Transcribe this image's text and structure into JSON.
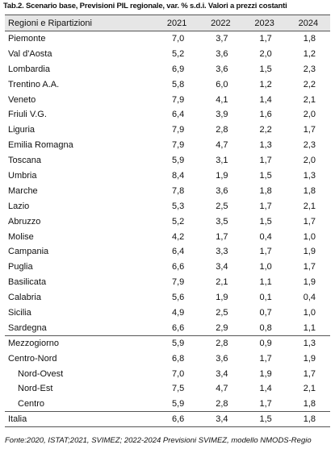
{
  "title": "Tab.2. Scenario base, Previsioni PIL regionale, var. % s.d.i. Valori a prezzi costanti",
  "table": {
    "header": [
      "Regioni e Ripartizioni",
      "2021",
      "2022",
      "2023",
      "2024"
    ],
    "rows": [
      [
        "Piemonte",
        "7,0",
        "3,7",
        "1,7",
        "1,8"
      ],
      [
        "Val d'Aosta",
        "5,2",
        "3,6",
        "2,0",
        "1,2"
      ],
      [
        "Lombardia",
        "6,9",
        "3,6",
        "1,5",
        "2,3"
      ],
      [
        "Trentino A.A.",
        "5,8",
        "6,0",
        "1,2",
        "2,2"
      ],
      [
        "Veneto",
        "7,9",
        "4,1",
        "1,4",
        "2,1"
      ],
      [
        "Friuli V.G.",
        "6,4",
        "3,9",
        "1,6",
        "2,0"
      ],
      [
        "Liguria",
        "7,9",
        "2,8",
        "2,2",
        "1,7"
      ],
      [
        "Emilia Romagna",
        "7,9",
        "4,7",
        "1,3",
        "2,3"
      ],
      [
        "Toscana",
        "5,9",
        "3,1",
        "1,7",
        "2,0"
      ],
      [
        "Umbria",
        "8,4",
        "1,9",
        "1,5",
        "1,3"
      ],
      [
        "Marche",
        "7,8",
        "3,6",
        "1,8",
        "1,8"
      ],
      [
        "Lazio",
        "5,3",
        "2,5",
        "1,7",
        "2,1"
      ],
      [
        "Abruzzo",
        "5,2",
        "3,5",
        "1,5",
        "1,7"
      ],
      [
        "Molise",
        "4,2",
        "1,7",
        "0,4",
        "1,0"
      ],
      [
        "Campania",
        "6,4",
        "3,3",
        "1,7",
        "1,9"
      ],
      [
        "Puglia",
        "6,6",
        "3,4",
        "1,0",
        "1,7"
      ],
      [
        "Basilicata",
        "7,9",
        "2,1",
        "1,1",
        "1,9"
      ],
      [
        "Calabria",
        "5,6",
        "1,9",
        "0,1",
        "0,4"
      ],
      [
        "Sicilia",
        "4,9",
        "2,5",
        "0,7",
        "1,0"
      ],
      [
        "Sardegna",
        "6,6",
        "2,9",
        "0,8",
        "1,1"
      ],
      [
        "Mezzogiorno",
        "5,9",
        "2,8",
        "0,9",
        "1,3"
      ],
      [
        "Centro-Nord",
        "6,8",
        "3,6",
        "1,7",
        "1,9"
      ],
      [
        "Nord-Ovest",
        "7,0",
        "3,4",
        "1,9",
        "1,7"
      ],
      [
        "Nord-Est",
        "7,5",
        "4,7",
        "1,4",
        "2,1"
      ],
      [
        "Centro",
        "5,9",
        "2,8",
        "1,7",
        "1,8"
      ],
      [
        "Italia",
        "6,6",
        "3,4",
        "1,5",
        "1,8"
      ]
    ]
  },
  "footnote": "Fonte:2020, ISTAT;2021, SVIMEZ; 2022-2024 Previsioni SVIMEZ, modello NMODS-Regio"
}
